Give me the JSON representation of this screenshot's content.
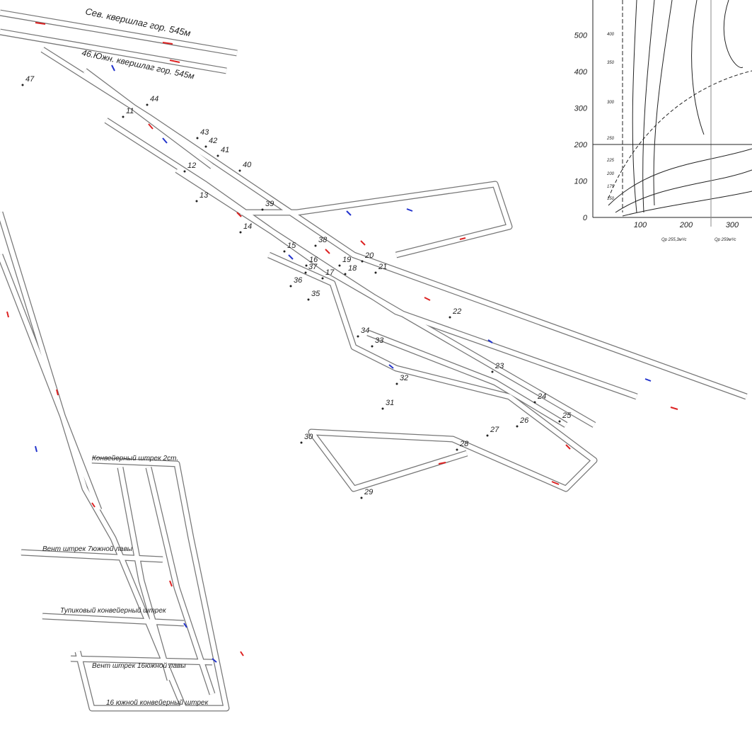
{
  "labels": {
    "north_crosscut": "Сев. квершлаг гор. 545м",
    "south_crosscut": "46.Южн. квершлаг гор. 545м",
    "conveyor_drift_2": "Конвейерный штрек 2ст.",
    "vent_drift_7": "Вент штрек 7южной лавы",
    "dead_end_drift": "Тупиковый конвейерный штрек",
    "vent_drift_16": "Вент штрек 16южной лавы",
    "conveyor_drift_16": "16 южной конвейерный штрек"
  },
  "nodes": [
    "47",
    "44",
    "11",
    "43",
    "42",
    "41",
    "40",
    "12",
    "13",
    "39",
    "14",
    "15",
    "38",
    "16",
    "19",
    "20",
    "18",
    "21",
    "17",
    "37",
    "36",
    "35",
    "22",
    "34",
    "33",
    "23",
    "32",
    "31",
    "24",
    "30",
    "25",
    "26",
    "27",
    "28",
    "29"
  ],
  "inset": {
    "yticks": [
      0,
      100,
      200,
      300,
      400,
      500
    ],
    "xticks": [
      100,
      200,
      300
    ],
    "curve_labels": [
      "400",
      "350",
      "300",
      "250",
      "225",
      "200",
      "175",
      "150"
    ],
    "notes": [
      "Qр 255,3м³/с",
      "Qр 259м³/с"
    ]
  }
}
